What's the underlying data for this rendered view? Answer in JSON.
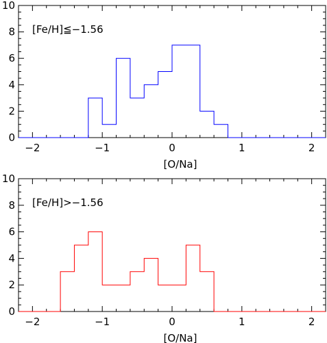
{
  "chart_data": [
    {
      "type": "histogram",
      "annotation": "[Fe/H]≦−1.56",
      "xlabel": "[O/Na]",
      "ylabel": "",
      "xlim": [
        -2.2,
        2.2
      ],
      "ylim": [
        0,
        10
      ],
      "xticks": [
        -2,
        -1,
        0,
        1,
        2
      ],
      "xtick_labels": [
        "−2",
        "−1",
        "0",
        "1",
        "2"
      ],
      "yticks": [
        0,
        2,
        4,
        6,
        8,
        10
      ],
      "ytick_labels": [
        "0",
        "2",
        "4",
        "6",
        "8",
        "10"
      ],
      "line_color": "#0000ff",
      "bin_edges": [
        -2.2,
        -2.0,
        -1.8,
        -1.6,
        -1.4,
        -1.2,
        -1.0,
        -0.8,
        -0.6,
        -0.4,
        -0.2,
        0.0,
        0.2,
        0.4,
        0.6,
        0.8,
        1.0,
        1.2,
        1.4,
        1.6,
        1.8,
        2.0,
        2.2
      ],
      "counts": [
        0,
        0,
        0,
        0,
        0,
        3,
        1,
        6,
        3,
        4,
        5,
        7,
        7,
        2,
        1,
        0,
        0,
        0,
        0,
        0,
        0,
        0
      ]
    },
    {
      "type": "histogram",
      "annotation": "[Fe/H]>−1.56",
      "xlabel": "[O/Na]",
      "ylabel": "",
      "xlim": [
        -2.2,
        2.2
      ],
      "ylim": [
        0,
        10
      ],
      "xticks": [
        -2,
        -1,
        0,
        1,
        2
      ],
      "xtick_labels": [
        "−2",
        "−1",
        "0",
        "1",
        "2"
      ],
      "yticks": [
        0,
        2,
        4,
        6,
        8,
        10
      ],
      "ytick_labels": [
        "0",
        "2",
        "4",
        "6",
        "8",
        "10"
      ],
      "line_color": "#ff0000",
      "bin_edges": [
        -2.2,
        -2.0,
        -1.8,
        -1.6,
        -1.4,
        -1.2,
        -1.0,
        -0.8,
        -0.6,
        -0.4,
        -0.2,
        0.0,
        0.2,
        0.4,
        0.6,
        0.8,
        1.0,
        1.2,
        1.4,
        1.6,
        1.8,
        2.0,
        2.2
      ],
      "counts": [
        0,
        0,
        0,
        3,
        5,
        6,
        2,
        2,
        3,
        4,
        2,
        2,
        5,
        3,
        0,
        0,
        0,
        0,
        0,
        0,
        0,
        0
      ]
    }
  ]
}
